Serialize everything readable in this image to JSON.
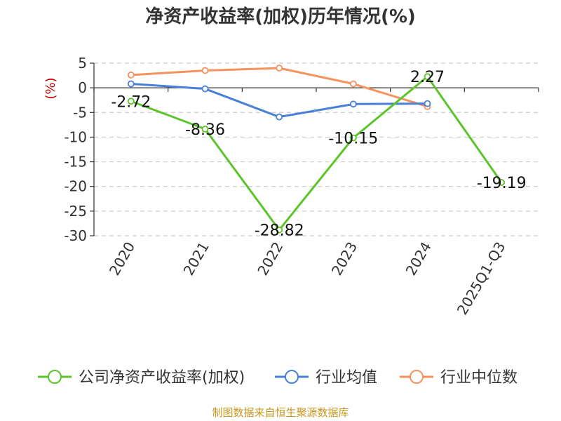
{
  "chart_data": {
    "type": "line",
    "title": "净资产收益率(加权)历年情况(%)",
    "ylabel": "(%)",
    "categories": [
      "2020",
      "2021",
      "2022",
      "2023",
      "2024",
      "2025Q1-Q3"
    ],
    "ylim": [
      -30,
      5
    ],
    "yticks": [
      5,
      0,
      -5,
      -10,
      -15,
      -20,
      -25,
      -30
    ],
    "grid": true,
    "legend_position": "bottom",
    "series": [
      {
        "name": "公司净资产收益率(加权)",
        "color": "#5cc42a",
        "values": [
          -2.72,
          -8.36,
          -28.82,
          -10.15,
          2.27,
          -19.19
        ],
        "labels": [
          "-2.72",
          "-8.36",
          "-28.82",
          "-10.15",
          "2.27",
          "-19.19"
        ]
      },
      {
        "name": "行业均值",
        "color": "#4a7fd8",
        "values": [
          0.8,
          -0.2,
          -5.9,
          -3.3,
          -3.2,
          null
        ]
      },
      {
        "name": "行业中位数",
        "color": "#f5925e",
        "values": [
          2.6,
          3.5,
          4.0,
          0.8,
          -3.8,
          null
        ]
      }
    ],
    "source": "制图数据来自恒生聚源数据库",
    "source_color": "#c8961e",
    "unit_color": "#cc0000"
  }
}
